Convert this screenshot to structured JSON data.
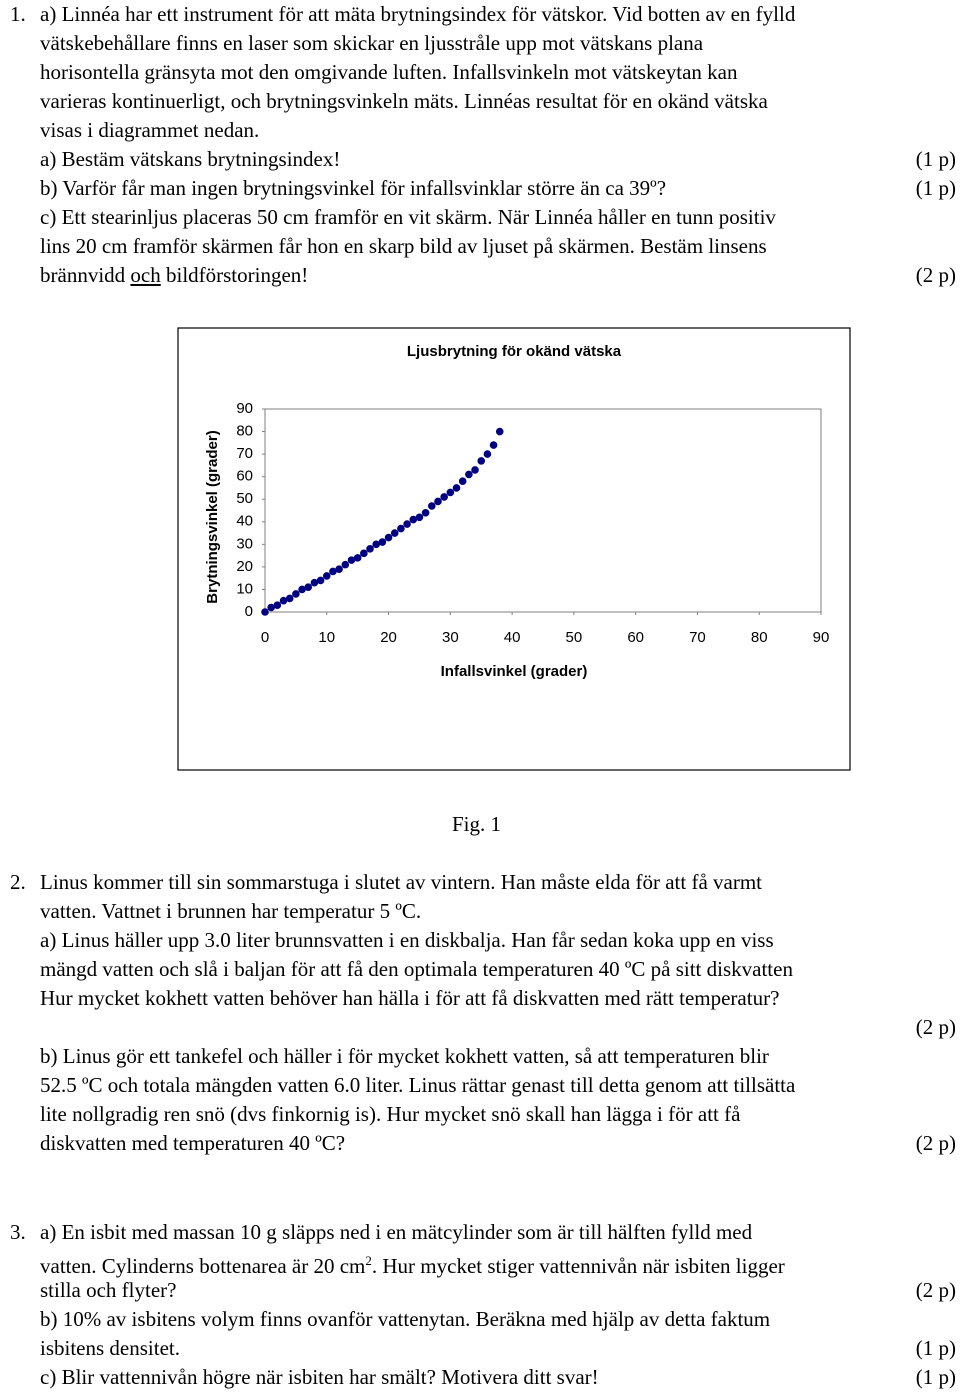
{
  "questions": [
    {
      "number": "1.",
      "lines": [
        {
          "text": "a) Linnéa har ett instrument för att mäta brytningsindex för vätskor. Vid botten av en fylld"
        },
        {
          "text": "vätskebehållare finns en laser som skickar en ljusstråle upp mot vätskans plana"
        },
        {
          "text": "horisontella gränsyta mot den omgivande luften. Infallsvinkeln mot vätskeytan kan"
        },
        {
          "text": "varieras kontinuerligt, och brytningsvinkeln mäts. Linnéas resultat för en okänd vätska"
        },
        {
          "text": "visas i diagrammet nedan."
        },
        {
          "text": "a) Bestäm vätskans brytningsindex!",
          "points": "(1 p)"
        },
        {
          "text": "b) Varför får man ingen brytningsvinkel för infallsvinklar större än ca 39º?",
          "points": "(1 p)"
        },
        {
          "text": "c) Ett stearinljus placeras 50 cm framför en vit skärm. När Linnéa håller en tunn positiv"
        },
        {
          "text": "lins 20 cm framför skärmen får hon en skarp bild av ljuset på skärmen. Bestäm linsens"
        },
        {
          "text": [
            "brännvidd ",
            "och",
            " bildförstoringen!"
          ],
          "points": "(2 p)"
        }
      ]
    },
    {
      "number": "2.",
      "lines": [
        {
          "text": "Linus kommer till sin sommarstuga i slutet av vintern. Han måste elda för att få varmt"
        },
        {
          "text": "vatten. Vattnet i brunnen har temperatur 5 ºC."
        },
        {
          "text": "a) Linus häller upp 3.0 liter brunnsvatten i en diskbalja. Han får sedan koka upp en viss"
        },
        {
          "text": "mängd vatten och slå i baljan för att få den optimala temperaturen 40 ºC på sitt diskvatten"
        },
        {
          "text": "Hur mycket kokhett vatten behöver han hälla i för att få diskvatten med rätt temperatur?"
        },
        {
          "points": "(2 p)"
        },
        {
          "text": "b) Linus gör ett tankefel och häller i för mycket kokhett vatten, så att temperaturen blir"
        },
        {
          "text": "52.5 ºC och totala mängden vatten 6.0 liter. Linus rättar genast till detta genom att tillsätta"
        },
        {
          "text": "lite nollgradig ren snö (dvs finkornig is). Hur mycket snö skall han lägga i för att få"
        },
        {
          "text": "diskvatten med temperaturen 40 ºC?",
          "points": "(2 p)"
        }
      ]
    },
    {
      "number": "3.",
      "lines": [
        {
          "text": "a) En isbit med massan 10 g släpps ned i en mätcylinder som är till hälften fylld med"
        },
        {
          "text": [
            "vatten. Cylinderns bottenarea är 20 cm",
            "2",
            ". Hur mycket stiger vattennivån när isbiten ligger"
          ]
        },
        {
          "text": "stilla och flyter?",
          "points": "(2 p)"
        },
        {
          "text": "b) 10% av isbitens volym finns ovanför vattenytan. Beräkna med hjälp av detta faktum"
        },
        {
          "text": "isbitens densitet.",
          "points": "(1 p)"
        },
        {
          "text": "c) Blir vattennivån högre när isbiten har smält? Motivera ditt svar!",
          "points": "(1 p)"
        }
      ]
    }
  ],
  "chart_data": {
    "type": "scatter",
    "title": "Ljusbrytning för okänd vätska",
    "x_label": "Infallsvinkel (grader)",
    "y_label": "Brytningsvinkel (grader)",
    "x": [
      0,
      1,
      2,
      3,
      4,
      5,
      6,
      7,
      8,
      9,
      10,
      11,
      12,
      13,
      14,
      15,
      16,
      17,
      18,
      19,
      20,
      21,
      22,
      23,
      24,
      25,
      26,
      27,
      28,
      29,
      30,
      31,
      32,
      33,
      34,
      35,
      36,
      37,
      38
    ],
    "values": [
      0,
      2,
      3,
      5,
      6,
      8,
      10,
      11,
      13,
      14,
      16,
      18,
      19,
      21,
      23,
      24,
      26,
      28,
      30,
      31,
      33,
      35,
      37,
      39,
      41,
      42,
      44,
      47,
      49,
      51,
      53,
      55,
      58,
      61,
      63,
      67,
      70,
      74,
      80
    ],
    "color": "#000080",
    "xlim": [
      0,
      90
    ],
    "ylim": [
      0,
      90
    ],
    "xticks": [
      0,
      10,
      20,
      30,
      40,
      50,
      60,
      70,
      80,
      90
    ],
    "yticks": [
      0,
      10,
      20,
      30,
      40,
      50,
      60,
      70,
      80,
      90
    ],
    "grid": false
  },
  "figure_caption": "Fig. 1"
}
